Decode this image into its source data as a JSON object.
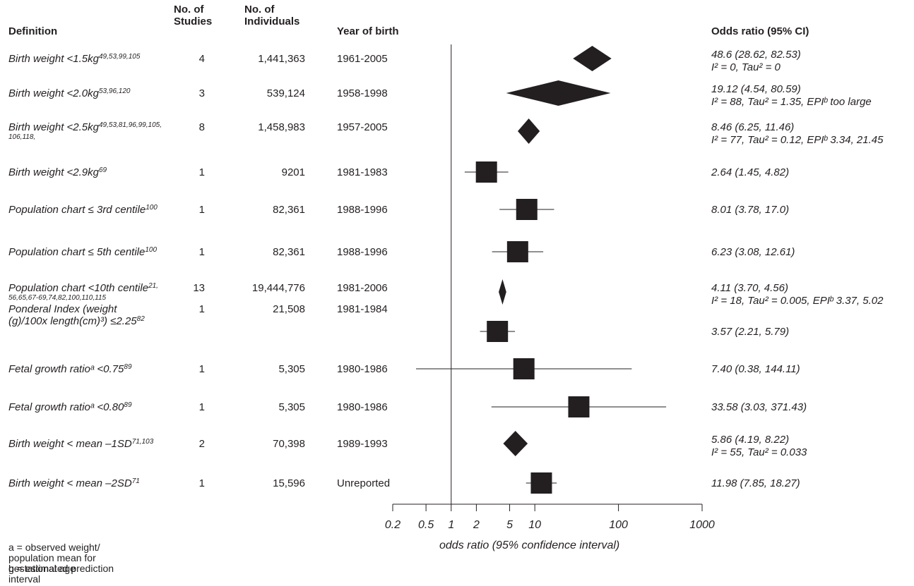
{
  "headers": {
    "definition": "Definition",
    "studies_1": "No. of",
    "studies_2": "Studies",
    "individuals_1": "No. of",
    "individuals_2": "Individuals",
    "year": "Year of birth",
    "or": "Odds ratio (95% CI)"
  },
  "rows": [
    {
      "def": "Birth weight <1.5kg",
      "ref": "49,53,99,105",
      "ref2": "",
      "studies": "4",
      "individuals": "1,441,363",
      "year": "1961-2005",
      "or_text": "48.6 (28.62, 82.53)",
      "het": "I² = 0, Tau² = 0"
    },
    {
      "def": "Birth weight <2.0kg",
      "ref": "53,96,120",
      "ref2": "",
      "studies": "3",
      "individuals": "539,124",
      "year": "1958-1998",
      "or_text": "19.12 (4.54, 80.59)",
      "het": "I² = 88, Tau² = 1.35, EPIᵇ too large"
    },
    {
      "def": "Birth weight <2.5kg",
      "ref": "49,53,81,96,99,105,",
      "ref2": "106,118,",
      "studies": "8",
      "individuals": "1,458,983",
      "year": "1957-2005",
      "or_text": "8.46 (6.25, 11.46)",
      "het": "I² = 77, Tau² = 0.12, EPIᵇ 3.34, 21.45"
    },
    {
      "def": "Birth weight <2.9kg",
      "ref": "69",
      "ref2": "",
      "studies": "1",
      "individuals": "9201",
      "year": "1981-1983",
      "or_text": "2.64 (1.45, 4.82)",
      "het": ""
    },
    {
      "def": "Population chart ≤ 3rd centile",
      "ref": "100",
      "ref2": "",
      "studies": "1",
      "individuals": "82,361",
      "year": "1988-1996",
      "or_text": "8.01 (3.78, 17.0)",
      "het": ""
    },
    {
      "def": "Population chart ≤ 5th centile",
      "ref": "100",
      "ref2": "",
      "studies": "1",
      "individuals": "82,361",
      "year": "1988-1996",
      "or_text": "6.23 (3.08, 12.61)",
      "het": ""
    },
    {
      "def": "Population chart <10th centile",
      "ref": "21,",
      "ref2": "56,65,67-69,74,82,100,110,115",
      "studies": "13",
      "individuals": "19,444,776",
      "year": "1981-2006",
      "or_text": "4.11 (3.70, 4.56)",
      "het": "I² = 18, Tau² = 0.005, EPIᵇ 3.37, 5.02"
    },
    {
      "def": "Ponderal Index (weight",
      "ref": "",
      "def_line2": "(g)/100x length(cm)³) ≤2.25",
      "ref_line2": "82",
      "ref2": "",
      "studies": "1",
      "individuals": "21,508",
      "year": "1981-1984",
      "or_text": "3.57 (2.21, 5.79)",
      "het": ""
    },
    {
      "def": "Fetal growth ratioᵃ <0.75",
      "ref": "89",
      "ref2": "",
      "studies": "1",
      "individuals": "5,305",
      "year": "1980-1986",
      "or_text": "7.40 (0.38, 144.11)",
      "het": ""
    },
    {
      "def": "Fetal growth ratioᵃ  <0.80",
      "ref": "89",
      "ref2": "",
      "studies": "1",
      "individuals": "5,305",
      "year": "1980-1986",
      "or_text": "33.58 (3.03, 371.43)",
      "het": ""
    },
    {
      "def": "Birth weight < mean –1SD",
      "ref": "71,103",
      "ref2": "",
      "studies": "2",
      "individuals": "70,398",
      "year": "1989-1993",
      "or_text": "5.86 (4.19, 8.22)",
      "het": "I² = 55, Tau² = 0.033"
    },
    {
      "def": "Birth weight < mean –2SD",
      "ref": "71",
      "ref2": "",
      "studies": "1",
      "individuals": "15,596",
      "year": "Unreported",
      "or_text": "11.98 (7.85, 18.27)",
      "het": ""
    }
  ],
  "chart_data": {
    "type": "forest",
    "x_scale": "log",
    "xlim": [
      0.2,
      1000
    ],
    "reference_line": 1,
    "xticks": [
      0.2,
      0.5,
      1,
      2,
      5,
      10,
      100,
      1000
    ],
    "xtick_labels": [
      "0.2",
      "0.5",
      "1",
      "2",
      "5",
      "10",
      "100",
      "1000"
    ],
    "xlabel": "odds ratio (95% confidence interval)",
    "estimates": [
      {
        "or": 48.6,
        "lo": 28.62,
        "hi": 82.53,
        "marker": "diamond"
      },
      {
        "or": 19.12,
        "lo": 4.54,
        "hi": 80.59,
        "marker": "diamond"
      },
      {
        "or": 8.46,
        "lo": 6.25,
        "hi": 11.46,
        "marker": "diamond"
      },
      {
        "or": 2.64,
        "lo": 1.45,
        "hi": 4.82,
        "marker": "square"
      },
      {
        "or": 8.01,
        "lo": 3.78,
        "hi": 17.0,
        "marker": "square"
      },
      {
        "or": 6.23,
        "lo": 3.08,
        "hi": 12.61,
        "marker": "square"
      },
      {
        "or": 4.11,
        "lo": 3.7,
        "hi": 4.56,
        "marker": "diamond"
      },
      {
        "or": 3.57,
        "lo": 2.21,
        "hi": 5.79,
        "marker": "square"
      },
      {
        "or": 7.4,
        "lo": 0.38,
        "hi": 144.11,
        "marker": "square"
      },
      {
        "or": 33.58,
        "lo": 3.03,
        "hi": 371.43,
        "marker": "square"
      },
      {
        "or": 5.86,
        "lo": 4.19,
        "hi": 8.22,
        "marker": "diamond"
      },
      {
        "or": 11.98,
        "lo": 7.85,
        "hi": 18.27,
        "marker": "square"
      }
    ]
  },
  "footnotes": {
    "a": "a = observed weight/ population mean for gestational age",
    "b": "b = estimated prediction interval"
  },
  "colors": {
    "ink": "#231f20",
    "background": "#ffffff"
  }
}
